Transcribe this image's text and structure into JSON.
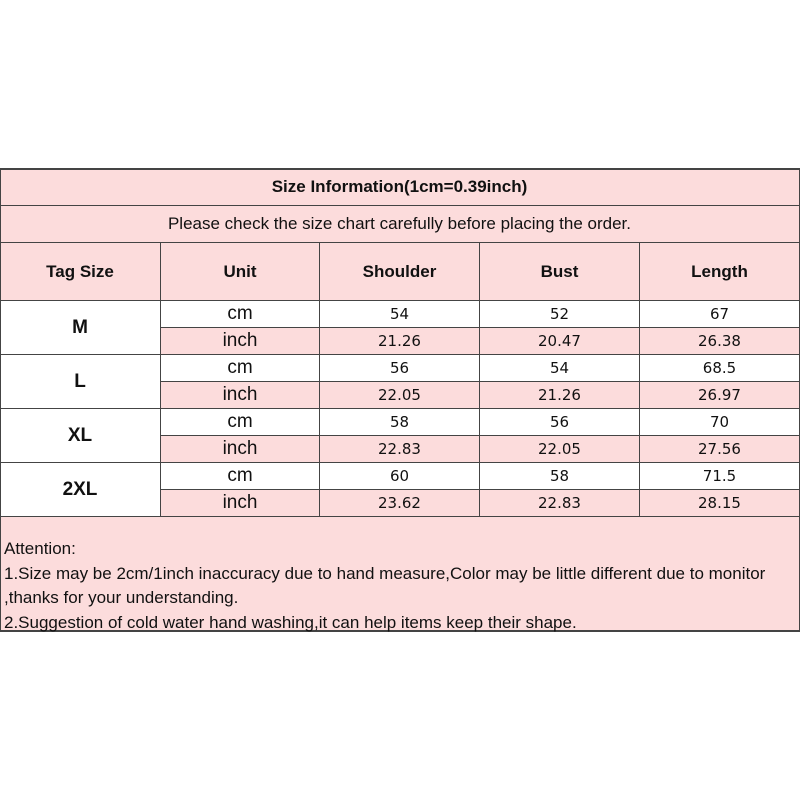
{
  "title": "Size Information(1cm=0.39inch)",
  "subtitle": "Please check the size chart carefully before placing the order.",
  "headers": [
    "Tag Size",
    "Unit",
    "Shoulder",
    "Bust",
    "Length"
  ],
  "rows": [
    {
      "size": "M",
      "cm": {
        "unit": "cm",
        "values": [
          "54",
          "52",
          "67"
        ]
      },
      "inch": {
        "unit": "inch",
        "values": [
          "21.26",
          "20.47",
          "26.38"
        ]
      }
    },
    {
      "size": "L",
      "cm": {
        "unit": "cm",
        "values": [
          "56",
          "54",
          "68.5"
        ]
      },
      "inch": {
        "unit": "inch",
        "values": [
          "22.05",
          "21.26",
          "26.97"
        ]
      }
    },
    {
      "size": "XL",
      "cm": {
        "unit": "cm",
        "values": [
          "58",
          "56",
          "70"
        ]
      },
      "inch": {
        "unit": "inch",
        "values": [
          "22.83",
          "22.05",
          "27.56"
        ]
      }
    },
    {
      "size": "2XL",
      "cm": {
        "unit": "cm",
        "values": [
          "60",
          "58",
          "71.5"
        ]
      },
      "inch": {
        "unit": "inch",
        "values": [
          "23.62",
          "22.83",
          "28.15"
        ]
      }
    }
  ],
  "notes": {
    "heading": "Attention:",
    "line1": "1.Size may be 2cm/1inch inaccuracy due to hand measure,Color may be little different due to monitor ,thanks for your understanding.",
    "line2": "2.Suggestion of cold water hand washing,it can help items keep their shape."
  },
  "colors": {
    "pink": "#fcdcdc",
    "border": "#444444"
  }
}
